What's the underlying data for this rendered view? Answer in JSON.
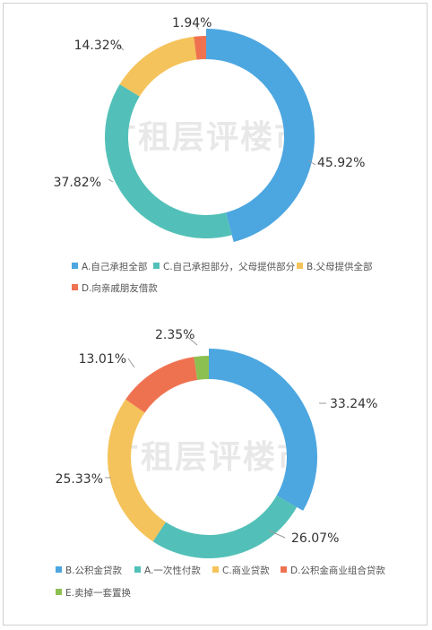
{
  "watermark": "广租层评楼市",
  "chart_data": [
    {
      "type": "pie",
      "donut": true,
      "categories": [
        "A.自己承担全部",
        "C.自己承担部分，父母提供部分",
        "B.父母提供全部",
        "D.向亲戚朋友借款"
      ],
      "values": [
        45.92,
        37.82,
        14.32,
        1.94
      ],
      "labels": [
        "45.92%",
        "37.82%",
        "14.32%",
        "1.94%"
      ],
      "colors": [
        "#4ca6e0",
        "#52c0b8",
        "#f5c35b",
        "#ef7250"
      ],
      "legend_position": "bottom"
    },
    {
      "type": "pie",
      "donut": true,
      "categories": [
        "B.公积金贷款",
        "A.一次性付款",
        "C.商业贷款",
        "D.公积金商业组合贷款",
        "E.卖掉一套置换"
      ],
      "values": [
        33.24,
        26.07,
        25.33,
        13.01,
        2.35
      ],
      "labels": [
        "33.24%",
        "26.07%",
        "25.33%",
        "13.01%",
        "2.35%"
      ],
      "colors": [
        "#4ca6e0",
        "#52c0b8",
        "#f5c35b",
        "#ef7250",
        "#8cc152"
      ],
      "legend_position": "bottom"
    }
  ]
}
